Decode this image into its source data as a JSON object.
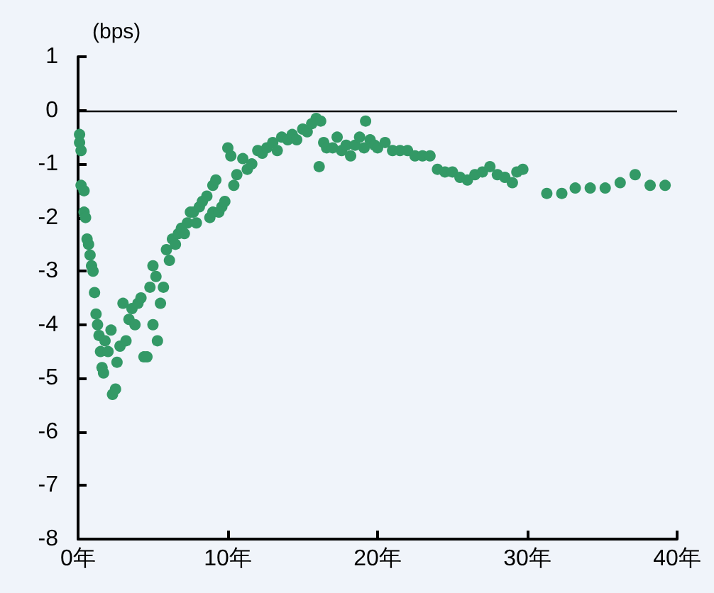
{
  "chart_data": {
    "type": "scatter",
    "ylabel": "(bps)",
    "marker": "circle",
    "grid": false,
    "xlim": [
      0,
      40
    ],
    "xticks": [
      {
        "value": 0,
        "label": "0年"
      },
      {
        "value": 10,
        "label": "10年"
      },
      {
        "value": 20,
        "label": "20年"
      },
      {
        "value": 30,
        "label": "30年"
      },
      {
        "value": 40,
        "label": "40年"
      }
    ],
    "ylim": [
      -8,
      1
    ],
    "yticks": [
      -8,
      -7,
      -6,
      -5,
      -4,
      -3,
      -2,
      -1,
      0,
      1
    ],
    "ref_lines": [
      {
        "axis": "y",
        "value": 0,
        "color": "#000000"
      }
    ],
    "series": [
      {
        "color": "#339966",
        "x": [
          0.1,
          0.1,
          0.2,
          0.2,
          0.4,
          0.4,
          0.5,
          0.6,
          0.7,
          0.8,
          0.9,
          1.0,
          1.1,
          1.2,
          1.3,
          1.4,
          1.5,
          1.6,
          1.7,
          1.8,
          2.0,
          2.2,
          2.3,
          2.5,
          2.6,
          2.8,
          3.0,
          3.2,
          3.4,
          3.6,
          3.8,
          4.0,
          4.2,
          4.4,
          4.6,
          4.8,
          5.0,
          5.0,
          5.2,
          5.3,
          5.5,
          5.7,
          5.9,
          6.1,
          6.3,
          6.5,
          6.7,
          6.9,
          7.1,
          7.3,
          7.5,
          7.7,
          7.9,
          8.1,
          8.3,
          8.6,
          8.8,
          9.0,
          9.0,
          9.2,
          9.4,
          9.6,
          9.8,
          10.0,
          10.2,
          10.4,
          10.6,
          11.0,
          11.3,
          11.6,
          12.0,
          12.3,
          12.6,
          13.0,
          13.3,
          13.6,
          14.0,
          14.3,
          14.6,
          15.0,
          15.3,
          15.6,
          15.9,
          16.2,
          16.4,
          16.1,
          16.6,
          17.0,
          17.3,
          17.6,
          17.9,
          18.2,
          18.5,
          18.8,
          19.1,
          19.2,
          19.5,
          19.8,
          20.0,
          20.5,
          21.0,
          21.5,
          22.0,
          22.5,
          23.0,
          23.5,
          24.0,
          24.5,
          25.0,
          25.5,
          26.0,
          26.5,
          27.0,
          27.5,
          28.0,
          28.5,
          29.0,
          29.3,
          29.7,
          31.3,
          32.3,
          33.2,
          34.2,
          35.2,
          36.2,
          37.2,
          38.2,
          39.2
        ],
        "values": [
          -0.45,
          -0.6,
          -0.75,
          -1.4,
          -1.5,
          -1.9,
          -2.0,
          -2.4,
          -2.5,
          -2.7,
          -2.9,
          -3.0,
          -3.4,
          -3.8,
          -4.0,
          -4.2,
          -4.5,
          -4.8,
          -4.9,
          -4.3,
          -4.5,
          -4.1,
          -5.3,
          -5.2,
          -4.7,
          -4.4,
          -3.6,
          -4.3,
          -3.9,
          -3.7,
          -4.0,
          -3.6,
          -3.5,
          -4.6,
          -4.6,
          -3.3,
          -2.9,
          -4.0,
          -3.1,
          -4.3,
          -3.6,
          -3.3,
          -2.6,
          -2.8,
          -2.4,
          -2.5,
          -2.3,
          -2.2,
          -2.3,
          -2.1,
          -1.9,
          -1.9,
          -2.1,
          -1.8,
          -1.7,
          -1.6,
          -2.0,
          -1.4,
          -1.9,
          -1.3,
          -1.9,
          -1.8,
          -1.7,
          -0.7,
          -0.85,
          -1.4,
          -1.2,
          -0.9,
          -1.1,
          -1.0,
          -0.75,
          -0.8,
          -0.7,
          -0.6,
          -0.75,
          -0.5,
          -0.55,
          -0.45,
          -0.55,
          -0.35,
          -0.4,
          -0.25,
          -0.15,
          -0.2,
          -0.6,
          -1.05,
          -0.7,
          -0.7,
          -0.5,
          -0.75,
          -0.65,
          -0.85,
          -0.65,
          -0.5,
          -0.7,
          -0.2,
          -0.55,
          -0.65,
          -0.7,
          -0.6,
          -0.75,
          -0.75,
          -0.75,
          -0.85,
          -0.85,
          -0.85,
          -1.1,
          -1.15,
          -1.15,
          -1.25,
          -1.3,
          -1.2,
          -1.15,
          -1.05,
          -1.2,
          -1.25,
          -1.35,
          -1.15,
          -1.1,
          -1.55,
          -1.55,
          -1.45,
          -1.45,
          -1.45,
          -1.35,
          -1.2,
          -1.4,
          -1.4
        ]
      }
    ]
  }
}
